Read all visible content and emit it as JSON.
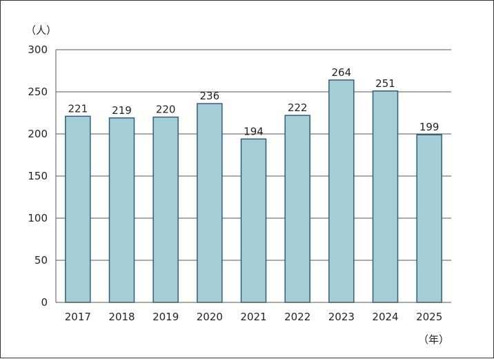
{
  "chart_data": {
    "type": "bar",
    "categories": [
      "2017",
      "2018",
      "2019",
      "2020",
      "2021",
      "2022",
      "2023",
      "2024",
      "2025"
    ],
    "values": [
      221,
      219,
      220,
      236,
      194,
      222,
      264,
      251,
      199
    ],
    "y_unit_label": "（人）",
    "x_unit_label": "（年）",
    "ylim": [
      0,
      300
    ],
    "yticks": [
      "0",
      "50",
      "100",
      "150",
      "200",
      "250",
      "300"
    ],
    "grid": true,
    "legend": "none",
    "colors": {
      "bar_fill": "#a5cdd6",
      "bar_edge": "#2b5f80",
      "grid": "#555555",
      "axis": "#555555"
    }
  }
}
